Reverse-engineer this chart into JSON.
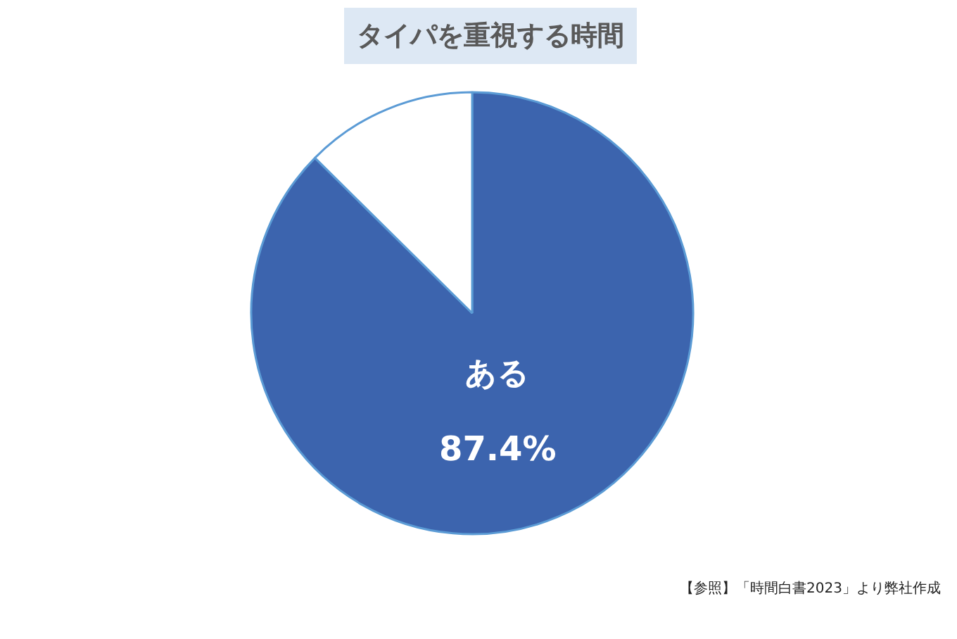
{
  "chart_data": {
    "type": "pie",
    "title": "タイパを重視する時間",
    "categories": [
      "ある",
      null
    ],
    "values": [
      87.4,
      12.6
    ],
    "colors": [
      "#3c64ae",
      "#ffffff"
    ],
    "value_labels": [
      "87.4%",
      null
    ],
    "annotations": [
      "【参照】「時間白書2023」より弊社作成"
    ]
  }
}
